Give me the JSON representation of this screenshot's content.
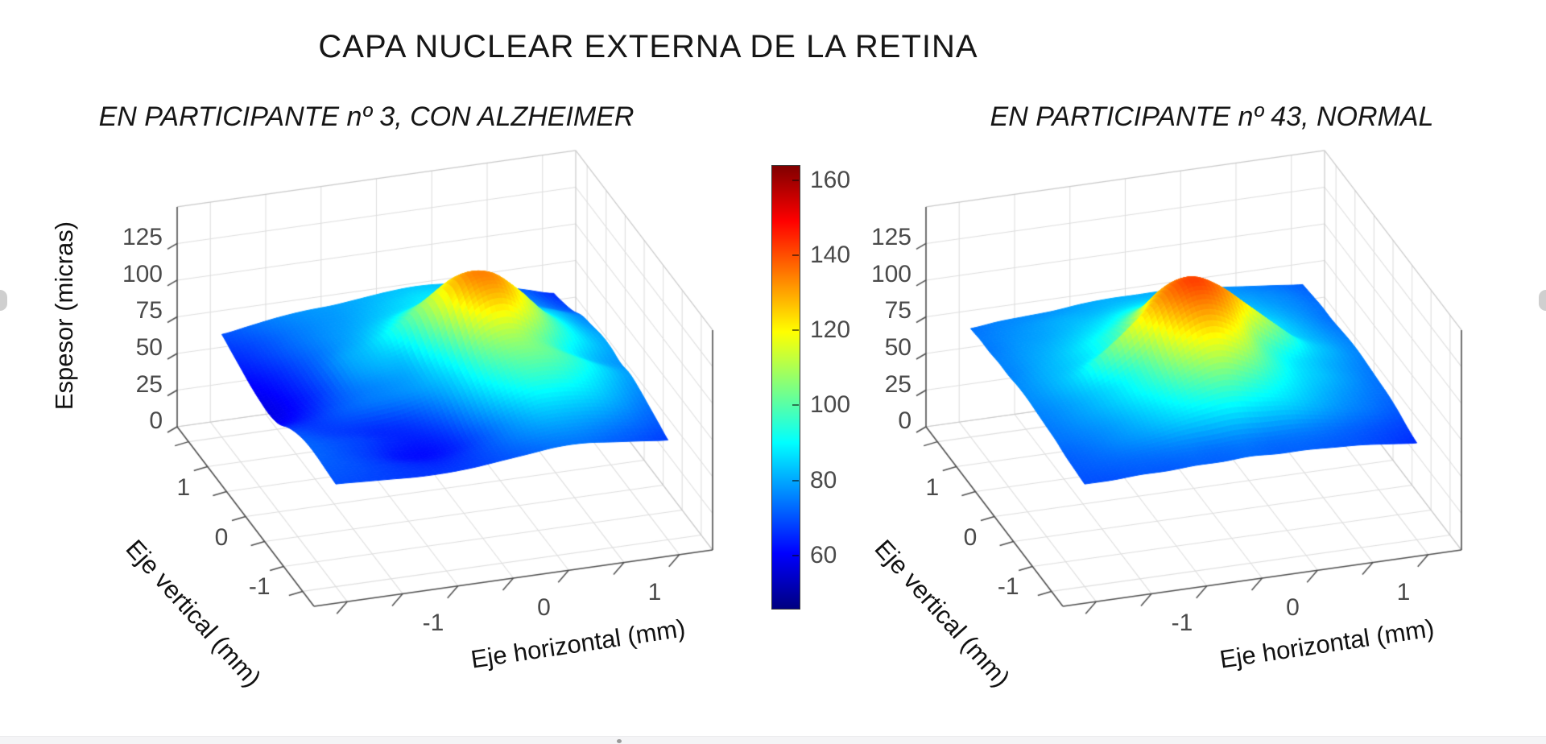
{
  "title": "CAPA NUCLEAR EXTERNA DE LA RETINA",
  "colorbar": {
    "ticks": [
      160,
      140,
      120,
      100,
      80,
      60
    ],
    "vmin": 46,
    "vmax": 164,
    "colormap": "jet",
    "colors": [
      "#000080",
      "#0000ff",
      "#00ffff",
      "#ffff00",
      "#ff0000",
      "#800000"
    ]
  },
  "chart_data": [
    {
      "type": "surface3d",
      "title": "EN PARTICIPANTE nº 3, CON ALZHEIMER",
      "xlabel": "Eje horizontal (mm)",
      "ylabel": "Eje vertical (mm)",
      "zlabel": "Espesor (micras)",
      "x_ticks": [
        -1,
        0,
        1
      ],
      "y_ticks": [
        1,
        0,
        -1
      ],
      "z_ticks": [
        0,
        25,
        50,
        75,
        100,
        125
      ],
      "xlim": [
        -1.8,
        1.8
      ],
      "ylim": [
        -1.8,
        1.8
      ],
      "zlim": [
        0,
        150
      ],
      "minor_tick_step": 0.5,
      "grid": true,
      "x": [
        -1.5,
        -1.25,
        -1,
        -0.75,
        -0.5,
        -0.25,
        0,
        0.25,
        0.5,
        0.75,
        1,
        1.25,
        1.5
      ],
      "y": [
        -1.5,
        -1.25,
        -1,
        -0.75,
        -0.5,
        -0.25,
        0,
        0.25,
        0.5,
        0.75,
        1,
        1.25,
        1.5
      ],
      "z": [
        [
          70,
          69,
          68,
          67,
          67,
          68,
          70,
          72,
          74,
          74,
          72,
          70,
          68
        ],
        [
          71,
          70,
          68,
          66,
          65,
          67,
          71,
          76,
          79,
          79,
          77,
          74,
          71
        ],
        [
          72,
          70,
          67,
          63,
          62,
          65,
          72,
          80,
          86,
          86,
          84,
          79,
          74
        ],
        [
          72,
          70,
          68,
          65,
          64,
          68,
          78,
          88,
          95,
          95,
          90,
          83,
          77
        ],
        [
          70,
          68,
          67,
          66,
          68,
          74,
          84,
          96,
          103,
          102,
          95,
          86,
          79
        ],
        [
          66,
          67,
          71,
          74,
          76,
          80,
          88,
          106,
          112,
          104,
          92,
          83,
          78
        ],
        [
          60,
          64,
          70,
          75,
          78,
          82,
          96,
          122,
          128,
          115,
          98,
          87,
          80
        ],
        [
          58,
          62,
          69,
          78,
          82,
          86,
          108,
          131,
          133,
          119,
          100,
          87,
          80
        ],
        [
          59,
          63,
          70,
          79,
          84,
          94,
          110,
          124,
          123,
          111,
          95,
          85,
          78
        ],
        [
          61,
          65,
          71,
          77,
          82,
          89,
          99,
          106,
          105,
          98,
          88,
          82,
          76
        ],
        [
          64,
          68,
          73,
          77,
          80,
          84,
          88,
          91,
          90,
          87,
          83,
          76,
          71
        ],
        [
          67,
          70,
          74,
          77,
          79,
          82,
          85,
          87,
          86,
          83,
          79,
          73,
          68
        ],
        [
          70,
          73,
          76,
          78,
          79,
          81,
          83,
          84,
          83,
          80,
          76,
          71,
          66
        ]
      ]
    },
    {
      "type": "surface3d",
      "title": "EN PARTICIPANTE nº 43, NORMAL",
      "xlabel": "Eje horizontal (mm)",
      "ylabel": "Eje vertical (mm)",
      "zlabel": "",
      "x_ticks": [
        -1,
        0,
        1
      ],
      "y_ticks": [
        1,
        0,
        -1
      ],
      "z_ticks": [
        0,
        25,
        50,
        75,
        100,
        125
      ],
      "xlim": [
        -1.8,
        1.8
      ],
      "ylim": [
        -1.8,
        1.8
      ],
      "zlim": [
        0,
        150
      ],
      "minor_tick_step": 0.5,
      "grid": true,
      "x": [
        -1.5,
        -1.25,
        -1,
        -0.75,
        -0.5,
        -0.25,
        0,
        0.25,
        0.5,
        0.75,
        1,
        1.25,
        1.5
      ],
      "y": [
        -1.5,
        -1.25,
        -1,
        -0.75,
        -0.5,
        -0.25,
        0,
        0.25,
        0.5,
        0.75,
        1,
        1.25,
        1.5
      ],
      "z": [
        [
          70,
          70,
          71,
          71,
          72,
          72,
          73,
          72,
          72,
          71,
          70,
          68,
          66
        ],
        [
          71,
          72,
          73,
          74,
          75,
          75,
          76,
          75,
          75,
          74,
          72,
          70,
          68
        ],
        [
          72,
          74,
          77,
          80,
          84,
          87,
          89,
          87,
          85,
          81,
          77,
          74,
          71
        ],
        [
          74,
          76,
          79,
          84,
          90,
          98,
          103,
          98,
          91,
          85,
          80,
          76,
          73
        ],
        [
          75,
          78,
          82,
          88,
          97,
          111,
          119,
          112,
          98,
          88,
          83,
          78,
          74
        ],
        [
          76,
          79,
          84,
          91,
          104,
          126,
          134,
          126,
          104,
          91,
          84,
          79,
          75
        ],
        [
          77,
          81,
          88,
          103,
          119,
          134,
          142,
          134,
          119,
          103,
          88,
          81,
          76
        ],
        [
          77,
          81,
          85,
          92,
          105,
          127,
          135,
          127,
          105,
          92,
          85,
          80,
          76
        ],
        [
          76,
          80,
          84,
          90,
          98,
          112,
          120,
          113,
          98,
          90,
          84,
          79,
          75
        ],
        [
          76,
          79,
          82,
          86,
          91,
          99,
          104,
          99,
          92,
          86,
          82,
          78,
          74
        ],
        [
          75,
          78,
          80,
          83,
          86,
          90,
          92,
          90,
          86,
          83,
          80,
          77,
          74
        ],
        [
          75,
          77,
          79,
          81,
          82,
          84,
          85,
          84,
          82,
          80,
          78,
          76,
          73
        ],
        [
          74,
          76,
          77,
          78,
          80,
          81,
          81,
          81,
          79,
          78,
          76,
          74,
          72
        ]
      ]
    }
  ]
}
